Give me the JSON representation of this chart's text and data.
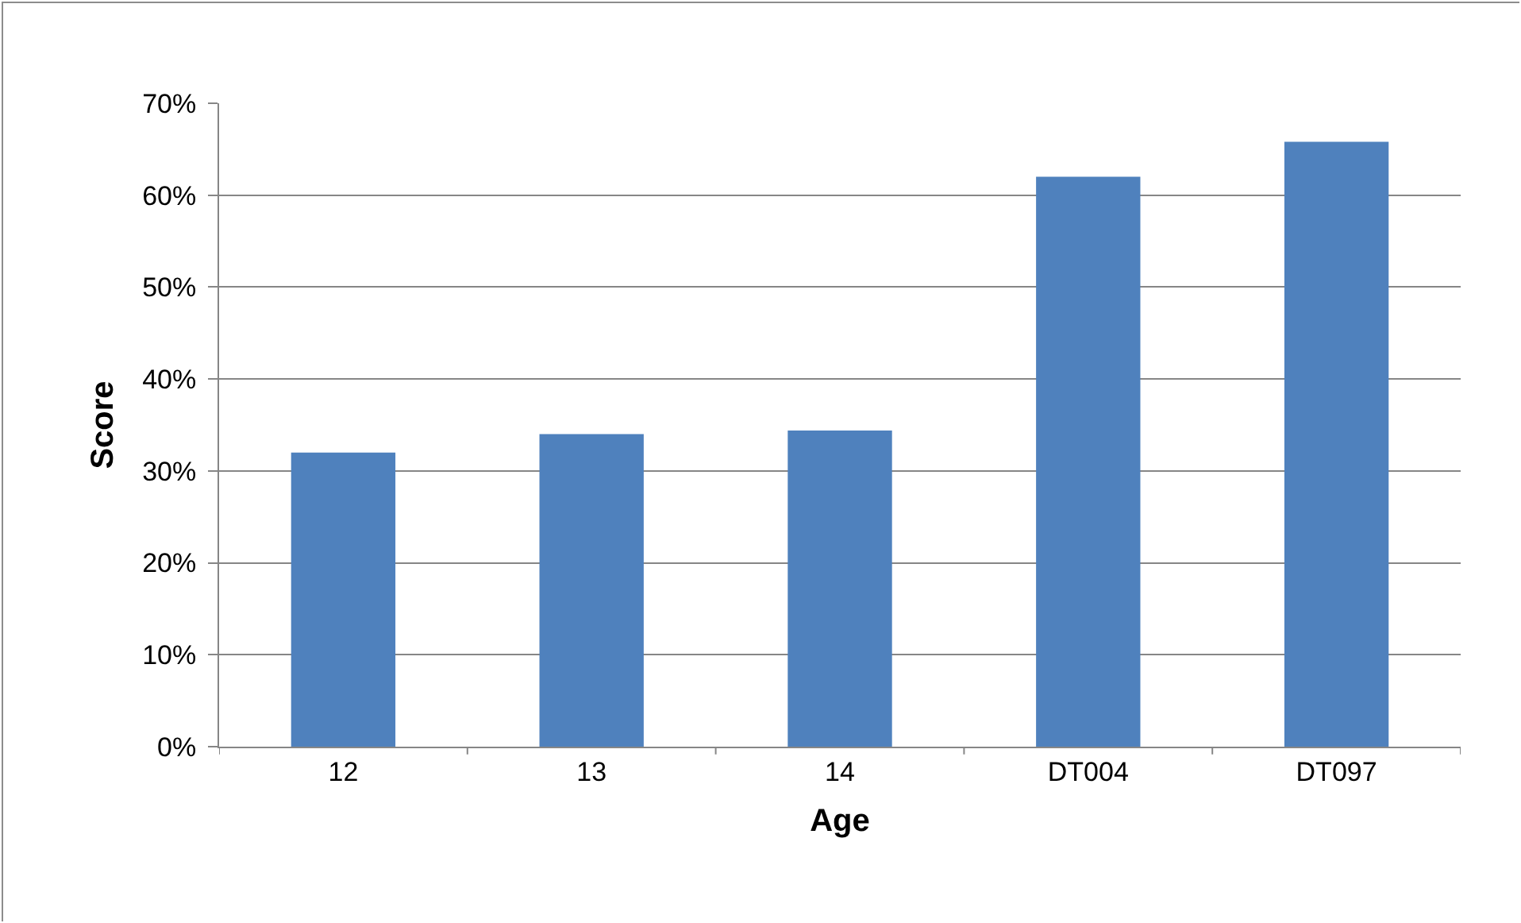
{
  "chart_data": {
    "type": "bar",
    "xlabel": "Age",
    "ylabel": "Score",
    "categories": [
      "12",
      "13",
      "14",
      "DT004",
      "DT097"
    ],
    "values": [
      32,
      34,
      34.4,
      62,
      65.8
    ],
    "color": "#4f81bd",
    "ylim": [
      0,
      70
    ],
    "yticks": [
      {
        "value": 0,
        "label": "0%"
      },
      {
        "value": 10,
        "label": "10%"
      },
      {
        "value": 20,
        "label": "20%"
      },
      {
        "value": 30,
        "label": "30%"
      },
      {
        "value": 40,
        "label": "40%"
      },
      {
        "value": 50,
        "label": "50%"
      },
      {
        "value": 60,
        "label": "60%"
      },
      {
        "value": 70,
        "label": "70%"
      }
    ],
    "grid": "y",
    "legend": false
  }
}
